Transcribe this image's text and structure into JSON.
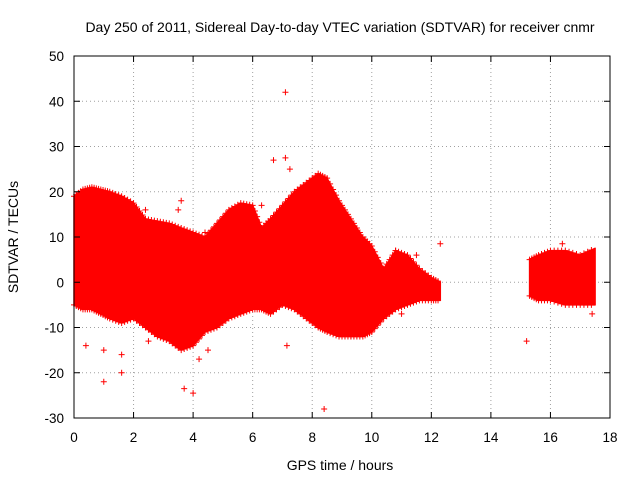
{
  "chart_data": {
    "type": "scatter",
    "title": "Day 250 of 2011, Sidereal Day-to-day VTEC variation (SDTVAR) for receiver cnmr",
    "xlabel": "GPS time / hours",
    "ylabel": "SDTVAR / TECUs",
    "xlim": [
      0,
      18
    ],
    "ylim": [
      -30,
      50
    ],
    "x_ticks": [
      0,
      2,
      4,
      6,
      8,
      10,
      12,
      14,
      16,
      18
    ],
    "y_ticks": [
      -30,
      -20,
      -10,
      0,
      10,
      20,
      30,
      40,
      50
    ],
    "grid": true,
    "marker": "+",
    "color": "#ff0000",
    "envelope": {
      "x": [
        0.0,
        0.3,
        0.6,
        0.9,
        1.2,
        1.6,
        2.0,
        2.4,
        2.8,
        3.2,
        3.6,
        4.0,
        4.4,
        4.8,
        5.2,
        5.6,
        6.0,
        6.3,
        6.6,
        7.0,
        7.4,
        7.8,
        8.2,
        8.5,
        8.9,
        9.3,
        9.7,
        10.0,
        10.4,
        10.8,
        11.2,
        11.6,
        12.0,
        12.3
      ],
      "upper": [
        19,
        20.5,
        21,
        20.5,
        20,
        19,
        17.5,
        14,
        13.5,
        13,
        12,
        11,
        10,
        13,
        16,
        17.5,
        17,
        12,
        14,
        17,
        20,
        22,
        24,
        23,
        18,
        14,
        10,
        8,
        3,
        7,
        6,
        3,
        1,
        0
      ],
      "lower": [
        -5,
        -6,
        -6,
        -7,
        -8,
        -9,
        -8,
        -10,
        -12,
        -13,
        -15,
        -14,
        -11,
        -10,
        -8,
        -7,
        -6,
        -6,
        -7,
        -5,
        -6,
        -8,
        -10,
        -11,
        -12,
        -12,
        -12,
        -11,
        -8,
        -6,
        -5,
        -4,
        -4,
        -4
      ]
    },
    "envelope2": {
      "x": [
        15.3,
        15.6,
        16.0,
        16.5,
        17.0,
        17.5
      ],
      "upper": [
        5,
        6,
        7,
        7,
        6,
        7.5
      ],
      "lower": [
        -3,
        -4,
        -4,
        -5,
        -5,
        -5
      ]
    },
    "outliers": [
      [
        7.1,
        42
      ],
      [
        6.7,
        27
      ],
      [
        7.1,
        27.5
      ],
      [
        7.25,
        25
      ],
      [
        8.4,
        -28
      ],
      [
        3.7,
        -23.5
      ],
      [
        4.0,
        -24.5
      ],
      [
        1.0,
        -22
      ],
      [
        1.6,
        -20
      ],
      [
        0.4,
        -14
      ],
      [
        1.6,
        -16
      ],
      [
        1.0,
        -15
      ],
      [
        4.5,
        -15
      ],
      [
        2.5,
        -13
      ],
      [
        7.15,
        -14
      ],
      [
        12.3,
        8.5
      ],
      [
        15.2,
        -13
      ],
      [
        16.4,
        8.5
      ],
      [
        3.6,
        18
      ],
      [
        3.5,
        16
      ],
      [
        2.4,
        16
      ],
      [
        6.3,
        17
      ],
      [
        4.2,
        -17
      ],
      [
        1.8,
        -7
      ],
      [
        3.0,
        -9
      ],
      [
        11.1,
        5
      ],
      [
        11.3,
        4
      ],
      [
        10.8,
        7
      ],
      [
        11.0,
        -7
      ],
      [
        11.5,
        6
      ],
      [
        17.4,
        -7
      ],
      [
        16.0,
        -4
      ],
      [
        15.6,
        3
      ],
      [
        0.1,
        12
      ],
      [
        9.3,
        -12
      ],
      [
        4.4,
        11
      ],
      [
        2.1,
        12
      ],
      [
        6.0,
        -4
      ],
      [
        5.5,
        -2
      ],
      [
        12.0,
        -2
      ]
    ]
  }
}
